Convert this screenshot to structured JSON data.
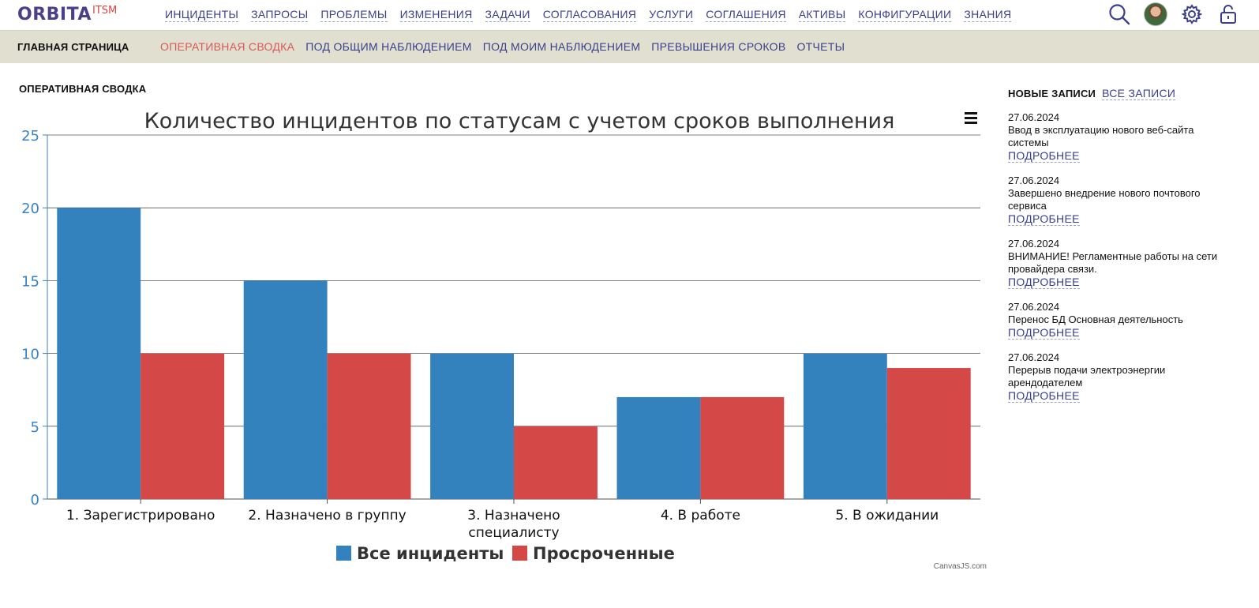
{
  "header": {
    "logo": "ORBITA",
    "logo_sup": "ITSM",
    "nav": [
      "ИНЦИДЕНТЫ",
      "ЗАПРОСЫ",
      "ПРОБЛЕМЫ",
      "ИЗМЕНЕНИЯ",
      "ЗАДАЧИ",
      "СОГЛАСОВАНИЯ",
      "УСЛУГИ",
      "СОГЛАШЕНИЯ",
      "АКТИВЫ",
      "КОНФИГУРАЦИИ",
      "ЗНАНИЯ"
    ],
    "icons": [
      "search-icon",
      "avatar",
      "gear-icon",
      "unlock-icon"
    ]
  },
  "subnav": {
    "home": "ГЛАВНАЯ СТРАНИЦА",
    "items": [
      "ОПЕРАТИВНАЯ СВОДКА",
      "ПОД ОБЩИМ НАБЛЮДЕНИЕМ",
      "ПОД МОИМ НАБЛЮДЕНИЕМ",
      "ПРЕВЫШЕНИЯ СРОКОВ",
      "ОТЧЕТЫ"
    ],
    "active_index": 0
  },
  "section_title": "ОПЕРАТИВНАЯ СВОДКА",
  "chart_data": {
    "type": "bar",
    "title": "Количество инцидентов по статусам с учетом сроков выполнения",
    "categories": [
      "1. Зарегистрировано",
      "2. Назначено в группу",
      "3. Назначено специалисту",
      "4. В работе",
      "5. В ожидании"
    ],
    "category_lines": [
      [
        "1. Зарегистрировано"
      ],
      [
        "2. Назначено в группу"
      ],
      [
        "3. Назначено",
        "специалисту"
      ],
      [
        "4. В работе"
      ],
      [
        "5. В ожидании"
      ]
    ],
    "series": [
      {
        "name": "Все инциденты",
        "color": "#3482bd",
        "values": [
          20,
          15,
          10,
          7,
          10
        ]
      },
      {
        "name": "Просроченные",
        "color": "#d54848",
        "values": [
          10,
          10,
          5,
          7,
          9
        ]
      }
    ],
    "ylim": [
      0,
      25
    ],
    "yticks": [
      0,
      5,
      10,
      15,
      20,
      25
    ],
    "grid": true,
    "legend": "bottom-center",
    "credit": "CanvasJS.com"
  },
  "news": {
    "title": "НОВЫЕ ЗАПИСИ",
    "all_label": "ВСЕ ЗАПИСИ",
    "more_label": "ПОДРОБНЕЕ",
    "items": [
      {
        "date": "27.06.2024",
        "text": "Ввод в эксплуатацию нового веб-сайта системы"
      },
      {
        "date": "27.06.2024",
        "text": "Завершено внедрение нового почтового сервиса"
      },
      {
        "date": "27.06.2024",
        "text": "ВНИМАНИЕ! Регламентные работы на сети провайдера связи."
      },
      {
        "date": "27.06.2024",
        "text": "Перенос БД Основная деятельность"
      },
      {
        "date": "27.06.2024",
        "text": "Перерыв подачи электроэнергии арендодателем"
      }
    ]
  }
}
